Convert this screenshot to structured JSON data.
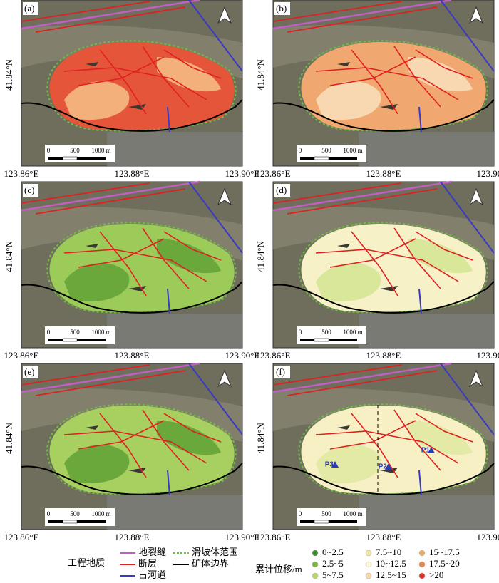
{
  "panels": [
    {
      "label": "(a)",
      "colors": [
        "#e4553a",
        "#f3b07a"
      ]
    },
    {
      "label": "(b)",
      "colors": [
        "#f0a870",
        "#f8d8b0"
      ]
    },
    {
      "label": "(c)",
      "colors": [
        "#9ccb5a",
        "#6aa83c"
      ]
    },
    {
      "label": "(d)",
      "colors": [
        "#f7f1c8",
        "#d9e79a"
      ]
    },
    {
      "label": "(e)",
      "colors": [
        "#a8d060",
        "#6aa83c"
      ]
    },
    {
      "label": "(f)",
      "colors": [
        "#f7f0c4",
        "#e3eaa6"
      ],
      "points": [
        "P1",
        "P2",
        "P3"
      ]
    }
  ],
  "axes": {
    "lat": "41.84°N",
    "lon": [
      "123.86°E",
      "123.88°E",
      "123.90°E"
    ]
  },
  "scale_bar": [
    "0",
    "500",
    "1000 m"
  ],
  "legend_geology": {
    "title": "工程地质",
    "items": [
      {
        "name": "地裂缝",
        "color": "#c060c0"
      },
      {
        "name": "断层",
        "color": "#e02020"
      },
      {
        "name": "古河道",
        "color": "#3a3ac0"
      },
      {
        "name": "滑坡体范围",
        "color": "#6cc040"
      },
      {
        "name": "矿体边界",
        "color": "#000000"
      }
    ]
  },
  "legend_displacement": {
    "title": "累计位移/m",
    "items": [
      {
        "name": "0~2.5",
        "color": "#3a8a2e"
      },
      {
        "name": "2.5~5",
        "color": "#7cb540"
      },
      {
        "name": "5~7.5",
        "color": "#b9d66a"
      },
      {
        "name": "7.5~10",
        "color": "#f1e6a0"
      },
      {
        "name": "10~12.5",
        "color": "#fbf5d5"
      },
      {
        "name": "12.5~15",
        "color": "#f6d7a8"
      },
      {
        "name": "15~17.5",
        "color": "#f0b46a"
      },
      {
        "name": "17.5~20",
        "color": "#e98a52"
      },
      {
        "name": ">20",
        "color": "#e0352b"
      }
    ]
  }
}
